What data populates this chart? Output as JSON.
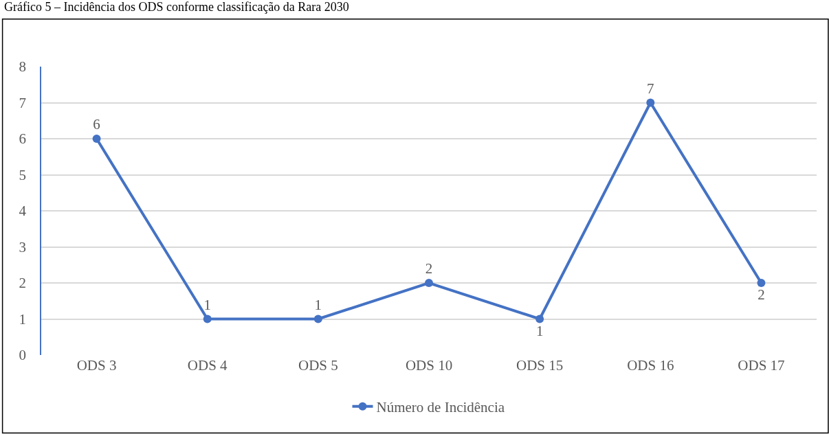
{
  "chart_data": {
    "type": "line",
    "title": "Gráfico 5 – Incidência dos ODS conforme classificação da Rara 2030",
    "categories": [
      "ODS 3",
      "ODS 4",
      "ODS 5",
      "ODS 10",
      "ODS 15",
      "ODS 16",
      "ODS 17"
    ],
    "series": [
      {
        "name": "Número de Incidência",
        "color": "#4472c4",
        "values": [
          6,
          1,
          1,
          2,
          1,
          7,
          2
        ]
      }
    ],
    "ylim": [
      0,
      8
    ],
    "yticks": [
      0,
      1,
      2,
      3,
      4,
      5,
      6,
      7,
      8
    ],
    "grid": "y",
    "legend": "bottom",
    "marker": "circle",
    "line_style": "solid",
    "data_labels": true
  }
}
